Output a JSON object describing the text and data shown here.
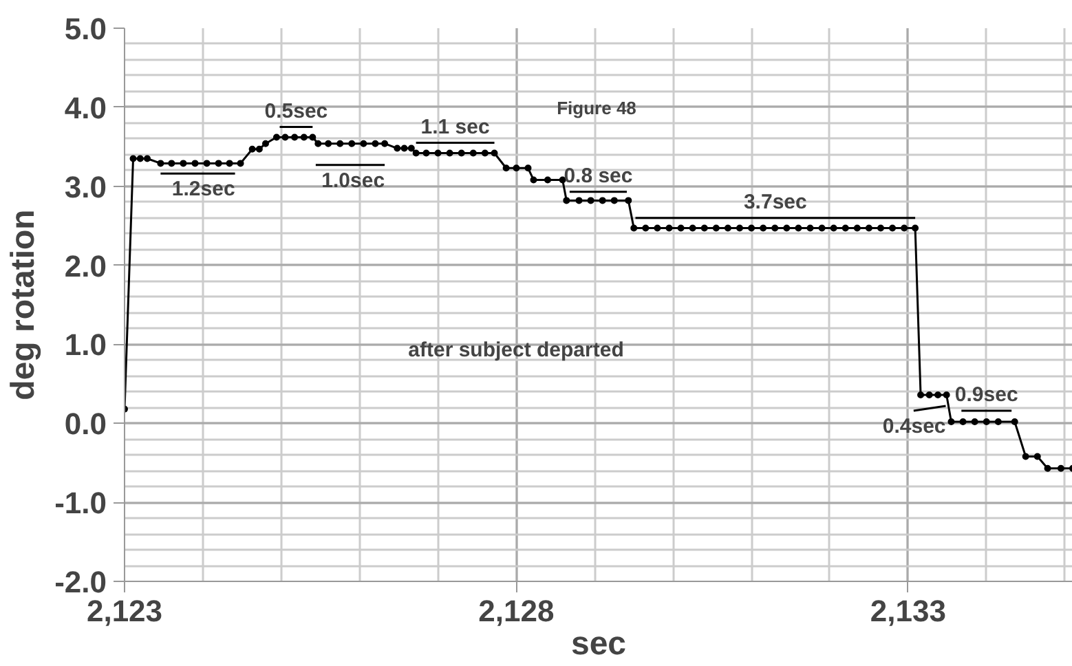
{
  "chart_data": {
    "type": "line",
    "xlabel": "sec",
    "ylabel": "deg rotation",
    "xlim": [
      2123,
      2135.1
    ],
    "ylim": [
      -2,
      5
    ],
    "xticks": [
      {
        "value": 2123,
        "label": "2,123"
      },
      {
        "value": 2128,
        "label": "2,128"
      },
      {
        "value": 2133,
        "label": "2,133"
      }
    ],
    "yticks": [
      {
        "value": -2,
        "label": "-2.0"
      },
      {
        "value": -1,
        "label": "-1.0"
      },
      {
        "value": 0,
        "label": "0.0"
      },
      {
        "value": 1,
        "label": "1.0"
      },
      {
        "value": 2,
        "label": "2.0"
      },
      {
        "value": 3,
        "label": "3.0"
      },
      {
        "value": 4,
        "label": "4.0"
      },
      {
        "value": 5,
        "label": "5.0"
      }
    ],
    "grid": true,
    "marker": "circle",
    "line_style": "solid",
    "series": [
      {
        "color": "#000000",
        "x": [
          2123.0,
          2123.11,
          2123.2,
          2123.29,
          2123.46,
          2123.6,
          2123.75,
          2123.9,
          2124.05,
          2124.2,
          2124.34,
          2124.48,
          2124.63,
          2124.72,
          2124.8,
          2124.94,
          2125.05,
          2125.17,
          2125.29,
          2125.4,
          2125.47,
          2125.6,
          2125.75,
          2125.9,
          2126.05,
          2126.2,
          2126.32,
          2126.48,
          2126.57,
          2126.66,
          2126.72,
          2126.85,
          2127.0,
          2127.15,
          2127.3,
          2127.45,
          2127.6,
          2127.72,
          2127.87,
          2128.0,
          2128.15,
          2128.22,
          2128.4,
          2128.59,
          2128.64,
          2128.8,
          2128.95,
          2129.1,
          2129.25,
          2129.43,
          2129.5,
          2129.65,
          2129.8,
          2129.95,
          2130.1,
          2130.25,
          2130.4,
          2130.55,
          2130.7,
          2130.85,
          2131.0,
          2131.15,
          2131.3,
          2131.45,
          2131.6,
          2131.75,
          2131.9,
          2132.05,
          2132.2,
          2132.35,
          2132.5,
          2132.65,
          2132.8,
          2132.95,
          2133.09,
          2133.16,
          2133.27,
          2133.38,
          2133.49,
          2133.55,
          2133.7,
          2133.85,
          2134.0,
          2134.15,
          2134.36,
          2134.5,
          2134.65,
          2134.78,
          2134.95,
          2135.1
        ],
        "values": [
          0.18,
          3.35,
          3.35,
          3.35,
          3.29,
          3.29,
          3.29,
          3.29,
          3.29,
          3.29,
          3.29,
          3.29,
          3.47,
          3.47,
          3.54,
          3.62,
          3.62,
          3.62,
          3.62,
          3.62,
          3.54,
          3.54,
          3.54,
          3.54,
          3.54,
          3.54,
          3.54,
          3.48,
          3.48,
          3.48,
          3.42,
          3.42,
          3.42,
          3.42,
          3.42,
          3.42,
          3.42,
          3.42,
          3.23,
          3.23,
          3.23,
          3.08,
          3.08,
          3.08,
          2.82,
          2.82,
          2.82,
          2.82,
          2.82,
          2.82,
          2.47,
          2.47,
          2.47,
          2.47,
          2.47,
          2.47,
          2.47,
          2.47,
          2.47,
          2.47,
          2.47,
          2.47,
          2.47,
          2.47,
          2.47,
          2.47,
          2.47,
          2.47,
          2.47,
          2.47,
          2.47,
          2.47,
          2.47,
          2.47,
          2.47,
          0.36,
          0.36,
          0.36,
          0.36,
          0.02,
          0.02,
          0.02,
          0.02,
          0.02,
          0.02,
          -0.42,
          -0.42,
          -0.57,
          -0.57,
          -0.57
        ]
      },
      {
        "color": "#000000",
        "marker": "none",
        "x": [
          2123.46,
          2124.41
        ],
        "values": [
          3.16,
          3.16
        ]
      },
      {
        "color": "#000000",
        "marker": "none",
        "x": [
          2124.98,
          2125.4
        ],
        "values": [
          3.75,
          3.75
        ]
      },
      {
        "color": "#000000",
        "marker": "none",
        "x": [
          2125.44,
          2126.32
        ],
        "values": [
          3.27,
          3.27
        ]
      },
      {
        "color": "#000000",
        "marker": "none",
        "x": [
          2126.72,
          2127.72
        ],
        "values": [
          3.55,
          3.55
        ]
      },
      {
        "color": "#000000",
        "marker": "none",
        "x": [
          2128.68,
          2129.41
        ],
        "values": [
          2.93,
          2.93
        ]
      },
      {
        "color": "#000000",
        "marker": "none",
        "x": [
          2129.52,
          2133.09
        ],
        "values": [
          2.6,
          2.6
        ]
      },
      {
        "color": "#000000",
        "marker": "none",
        "x": [
          2133.07,
          2133.48
        ],
        "values": [
          0.16,
          0.22
        ]
      },
      {
        "color": "#000000",
        "marker": "none",
        "x": [
          2133.68,
          2134.32
        ],
        "values": [
          0.16,
          0.16
        ]
      }
    ],
    "annotations": [
      "Figure 48",
      "after subject departed",
      "1.2sec",
      "0.5sec",
      "1.0sec",
      "1.1 sec",
      "0.8 sec",
      "3.7sec",
      "0.4sec",
      "0.9sec"
    ]
  }
}
